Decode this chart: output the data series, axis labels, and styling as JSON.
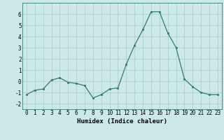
{
  "x": [
    0,
    1,
    2,
    3,
    4,
    5,
    6,
    7,
    8,
    9,
    10,
    11,
    12,
    13,
    14,
    15,
    16,
    17,
    18,
    19,
    20,
    21,
    22,
    23
  ],
  "y": [
    -1.2,
    -0.8,
    -0.7,
    0.1,
    0.3,
    -0.1,
    -0.2,
    -0.4,
    -1.5,
    -1.2,
    -0.7,
    -0.6,
    1.5,
    3.2,
    4.6,
    6.2,
    6.2,
    4.3,
    3.0,
    0.2,
    -0.5,
    -1.0,
    -1.2,
    -1.2
  ],
  "line_color": "#2e7d6e",
  "marker_color": "#2e7d6e",
  "bg_color": "#cde8e8",
  "grid_color": "#aacccc",
  "xlabel": "Humidex (Indice chaleur)",
  "xlim": [
    -0.5,
    23.5
  ],
  "ylim": [
    -2.5,
    7.0
  ],
  "yticks": [
    -2,
    -1,
    0,
    1,
    2,
    3,
    4,
    5,
    6
  ],
  "xticks": [
    0,
    1,
    2,
    3,
    4,
    5,
    6,
    7,
    8,
    9,
    10,
    11,
    12,
    13,
    14,
    15,
    16,
    17,
    18,
    19,
    20,
    21,
    22,
    23
  ],
  "tick_fontsize": 5.5,
  "label_fontsize": 6.5
}
